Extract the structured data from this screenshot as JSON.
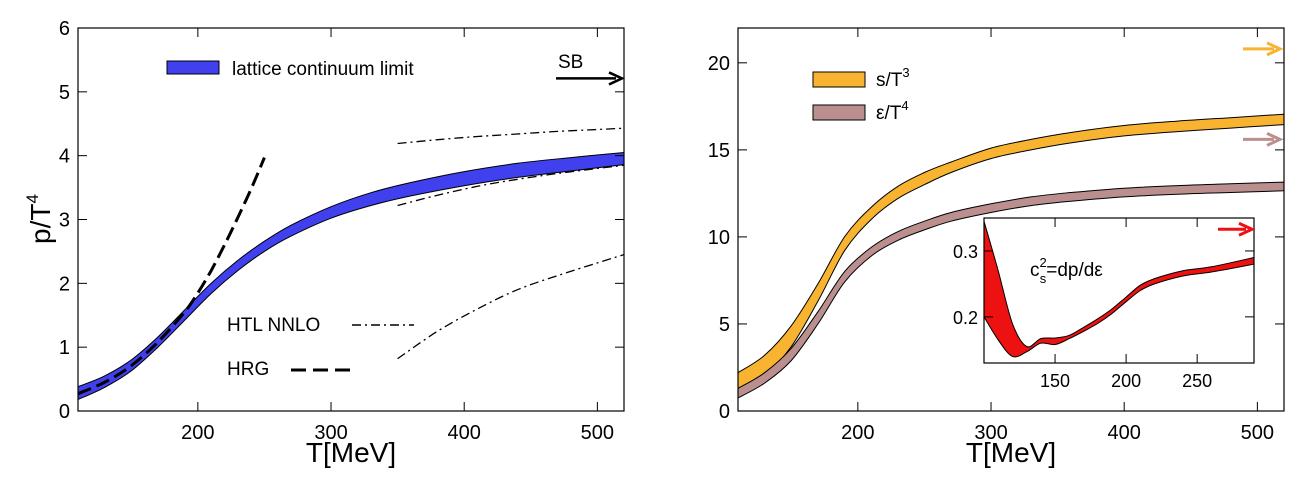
{
  "chart_data": [
    {
      "type": "line",
      "panel": "left",
      "xlabel": "T[MeV]",
      "ylabel_main": "p/T",
      "ylabel_sup": "4",
      "xlim": [
        110,
        520
      ],
      "ylim": [
        0,
        6
      ],
      "xticks": [
        200,
        300,
        400,
        500
      ],
      "yticks": [
        0,
        1,
        2,
        3,
        4,
        5,
        6
      ],
      "series": [
        {
          "name": "lattice continuum limit",
          "kind": "band",
          "color": "#4040ee",
          "x": [
            110,
            130,
            150,
            170,
            190,
            210,
            230,
            250,
            270,
            300,
            330,
            360,
            400,
            440,
            480,
            520
          ],
          "lower": [
            0.18,
            0.37,
            0.63,
            1.0,
            1.42,
            1.84,
            2.2,
            2.5,
            2.74,
            3.02,
            3.22,
            3.37,
            3.53,
            3.66,
            3.76,
            3.86
          ],
          "upper": [
            0.38,
            0.55,
            0.8,
            1.16,
            1.58,
            2.0,
            2.36,
            2.66,
            2.91,
            3.2,
            3.42,
            3.58,
            3.75,
            3.88,
            3.97,
            4.05
          ]
        },
        {
          "name": "HRG",
          "kind": "dashed",
          "x": [
            110,
            130,
            150,
            170,
            190,
            200,
            210,
            220,
            230,
            240,
            250
          ],
          "y": [
            0.27,
            0.45,
            0.71,
            1.08,
            1.55,
            1.85,
            2.2,
            2.6,
            3.03,
            3.48,
            3.97
          ]
        },
        {
          "name": "HTL NNLO",
          "kind": "dashdot",
          "bands": [
            {
              "x": [
                350,
                380,
                410,
                440,
                470,
                500,
                520
              ],
              "y": [
                4.19,
                4.25,
                4.3,
                4.34,
                4.38,
                4.41,
                4.43
              ]
            },
            {
              "x": [
                350,
                380,
                410,
                440,
                470,
                500,
                520
              ],
              "y": [
                3.22,
                3.38,
                3.52,
                3.63,
                3.72,
                3.8,
                3.85
              ]
            },
            {
              "x": [
                350,
                380,
                410,
                440,
                470,
                500,
                520
              ],
              "y": [
                0.82,
                1.25,
                1.6,
                1.9,
                2.12,
                2.32,
                2.45
              ]
            }
          ]
        }
      ],
      "legend": [
        {
          "label": "lattice continuum limit",
          "symbol": "band"
        },
        {
          "label": "HTL NNLO",
          "symbol": "dashdot"
        },
        {
          "label": "HRG",
          "symbol": "dashed"
        }
      ],
      "annotations": [
        {
          "text": "SB",
          "arrow_y": 5.21
        }
      ]
    },
    {
      "type": "line",
      "panel": "right",
      "xlabel": "T[MeV]",
      "xlim": [
        110,
        520
      ],
      "ylim": [
        0,
        22
      ],
      "xticks": [
        200,
        300,
        400,
        500
      ],
      "yticks": [
        0,
        5,
        10,
        15,
        20
      ],
      "series": [
        {
          "name": "s/T3",
          "label_main": "s/T",
          "label_sup": "3",
          "kind": "band",
          "color": "#f8b430",
          "sb_arrow_y": 20.8,
          "x": [
            110,
            130,
            150,
            170,
            190,
            210,
            230,
            250,
            270,
            300,
            330,
            360,
            400,
            440,
            480,
            520
          ],
          "lower": [
            1.0,
            2.0,
            3.7,
            6.3,
            9.2,
            11.0,
            12.2,
            13.0,
            13.7,
            14.5,
            15.0,
            15.4,
            15.8,
            16.05,
            16.25,
            16.45
          ],
          "upper": [
            2.2,
            3.2,
            4.9,
            7.3,
            10.0,
            11.7,
            12.9,
            13.7,
            14.3,
            15.1,
            15.6,
            16.0,
            16.4,
            16.65,
            16.85,
            17.05
          ]
        },
        {
          "name": "ε/T4",
          "label_main": "ε/T",
          "label_sup": "4",
          "kind": "band",
          "color": "#bc8f8f",
          "sb_arrow_y": 15.6,
          "x": [
            110,
            130,
            150,
            170,
            190,
            210,
            230,
            250,
            270,
            300,
            330,
            360,
            400,
            440,
            480,
            520
          ],
          "lower": [
            0.75,
            1.6,
            2.9,
            5.0,
            7.4,
            8.9,
            9.8,
            10.4,
            10.9,
            11.4,
            11.8,
            12.05,
            12.3,
            12.45,
            12.55,
            12.65
          ],
          "upper": [
            1.3,
            2.2,
            3.6,
            5.7,
            8.0,
            9.4,
            10.3,
            10.9,
            11.4,
            11.9,
            12.3,
            12.55,
            12.8,
            12.95,
            13.05,
            13.15
          ]
        }
      ],
      "inset": {
        "label_c": "c",
        "label_sub": "s",
        "label_sup": "2",
        "label_rest": "=dp/dε",
        "xlim": [
          100,
          290
        ],
        "ylim": [
          0.13,
          0.35
        ],
        "xticks": [
          150,
          200,
          250
        ],
        "yticks": [
          0.2,
          0.3
        ],
        "color": "#ee1111",
        "sb_arrow_y": 0.333,
        "x": [
          100,
          110,
          120,
          130,
          140,
          150,
          160,
          170,
          180,
          190,
          200,
          210,
          220,
          240,
          260,
          290
        ],
        "lower": [
          0.2,
          0.165,
          0.14,
          0.147,
          0.16,
          0.158,
          0.167,
          0.178,
          0.19,
          0.205,
          0.223,
          0.24,
          0.25,
          0.262,
          0.268,
          0.28
        ],
        "upper": [
          0.345,
          0.27,
          0.19,
          0.155,
          0.167,
          0.168,
          0.172,
          0.184,
          0.197,
          0.212,
          0.23,
          0.248,
          0.258,
          0.27,
          0.276,
          0.29
        ]
      }
    }
  ]
}
